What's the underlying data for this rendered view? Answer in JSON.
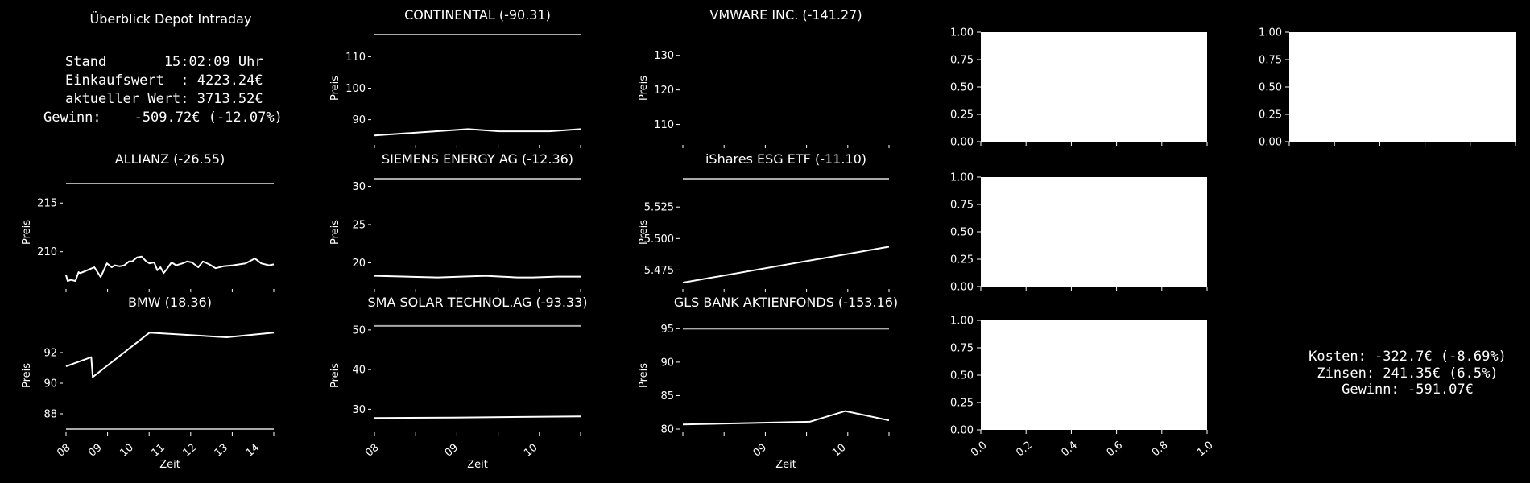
{
  "header": {
    "title": "Überblick Depot Intraday",
    "stand_line": "Stand       15:02:09 Uhr",
    "einkauf_line": "Einkaufswert  : 4223.24€",
    "aktuell_line": "aktueller Wert: 3713.52€",
    "gewinn_line": "Gewinn:    -509.72€ (-12.07%)"
  },
  "footer_summary": {
    "kosten_line": "Kosten: -322.7€ (-8.69%)",
    "zinsen_line": "Zinsen: 241.35€ (6.5%)",
    "gewinn_line": "Gewinn: -591.07€"
  },
  "colors": {
    "background": "#000000",
    "line": "#ffffff",
    "reference_line": "#aaaaaa",
    "empty_axes": "#ffffff"
  },
  "chart_data": [
    {
      "type": "line",
      "title": "CONTINENTAL (-90.31)",
      "ylabel": "Preis",
      "xlabel": "",
      "ylim": [
        83,
        117
      ],
      "yticks": [
        90,
        100,
        110
      ],
      "reference_line": 117,
      "xlim": [
        8.0,
        11.3
      ],
      "xticks": [],
      "x": [
        8.0,
        9.5,
        10.0,
        10.8,
        11.3
      ],
      "y": [
        85,
        87,
        86.3,
        86.3,
        87
      ]
    },
    {
      "type": "line",
      "title": "VMWARE INC. (-141.27)",
      "ylabel": "Preis",
      "xlabel": "",
      "ylim": [
        105,
        136
      ],
      "yticks": [
        110,
        120,
        130
      ],
      "reference_line": null,
      "xlim": [
        8.0,
        10.7
      ],
      "xticks": [],
      "x": [],
      "y": []
    },
    {
      "type": "line",
      "title": "ALLIANZ (-26.55)",
      "ylabel": "Preis",
      "xlabel": "",
      "ylim": [
        206.5,
        217.5
      ],
      "yticks": [
        210,
        215
      ],
      "reference_line": 217,
      "xlim": [
        8.0,
        14.6
      ],
      "xticks": [],
      "x": [
        8.0,
        8.05,
        8.15,
        8.3,
        8.4,
        8.45,
        8.6,
        8.75,
        8.9,
        9.1,
        9.3,
        9.45,
        9.55,
        9.7,
        9.85,
        10.0,
        10.1,
        10.25,
        10.4,
        10.55,
        10.65,
        10.8,
        10.9,
        11.0,
        11.1,
        11.2,
        11.35,
        11.5,
        11.7,
        11.85,
        12.0,
        12.2,
        12.35,
        12.55,
        12.75,
        13.0,
        13.3,
        13.7,
        14.0,
        14.2,
        14.45,
        14.6
      ],
      "y": [
        207.6,
        207.0,
        207.1,
        207.0,
        207.9,
        207.8,
        208.0,
        208.2,
        208.4,
        207.4,
        208.8,
        208.4,
        208.6,
        208.5,
        208.6,
        209.0,
        209.0,
        209.4,
        209.5,
        209.0,
        208.8,
        208.9,
        208.1,
        208.4,
        207.8,
        208.2,
        208.9,
        208.6,
        208.8,
        209.0,
        208.9,
        208.4,
        209.0,
        208.7,
        208.3,
        208.5,
        208.6,
        208.8,
        209.3,
        208.8,
        208.6,
        208.7
      ]
    },
    {
      "type": "line",
      "title": "SIEMENS ENERGY AG (-12.36)",
      "ylabel": "Preis",
      "xlabel": "",
      "ylim": [
        17,
        31
      ],
      "yticks": [
        20,
        25,
        30
      ],
      "reference_line": 31,
      "xlim": [
        8.0,
        10.6
      ],
      "xticks": [],
      "x": [
        8.0,
        8.4,
        8.8,
        9.1,
        9.4,
        9.6,
        9.8,
        10.0,
        10.3,
        10.6
      ],
      "y": [
        18.3,
        18.2,
        18.1,
        18.2,
        18.3,
        18.2,
        18.1,
        18.1,
        18.2,
        18.2
      ]
    },
    {
      "type": "line",
      "title": "iShares ESG ETF (-11.10)",
      "ylabel": "Preis",
      "xlabel": "",
      "ylim": [
        5.4625,
        5.5475
      ],
      "yticks": [
        5.475,
        5.5,
        5.525
      ],
      "reference_line": 5.5475,
      "xlim": [
        8.0,
        10.6
      ],
      "xticks": [],
      "x": [
        8.0,
        10.6
      ],
      "y": [
        5.465,
        5.4935
      ]
    },
    {
      "type": "line",
      "title": "BMW (18.36)",
      "ylabel": "Preis",
      "xlabel": "Zeit",
      "ylim": [
        87,
        94
      ],
      "yticks": [
        88,
        90,
        92
      ],
      "reference_line": 87,
      "xlim": [
        8.0,
        14.6
      ],
      "xticks": [
        "08",
        "09",
        "10",
        "11",
        "12",
        "13",
        "14"
      ],
      "x": [
        8.0,
        8.8,
        8.85,
        10.65,
        13.1,
        14.6
      ],
      "y": [
        91.1,
        91.7,
        90.4,
        93.3,
        93.0,
        93.3
      ]
    },
    {
      "type": "line",
      "title": "SMA SOLAR TECHNOL.AG (-93.33)",
      "ylabel": "Preis",
      "xlabel": "Zeit",
      "ylim": [
        25,
        52
      ],
      "yticks": [
        30,
        40,
        50
      ],
      "reference_line": 51,
      "xlim": [
        8.0,
        10.6
      ],
      "xticks": [
        "08",
        "09",
        "10"
      ],
      "x": [
        8.0,
        9.0,
        9.5,
        10.6
      ],
      "y": [
        27.8,
        27.9,
        28.0,
        28.2
      ]
    },
    {
      "type": "line",
      "title": "GLS BANK AKTIENFONDS (-153.16)",
      "ylabel": "Preis",
      "xlabel": "Zeit",
      "ylim": [
        80,
        96
      ],
      "yticks": [
        80,
        85,
        90,
        95
      ],
      "reference_line": 95,
      "xlim": [
        8.0,
        10.6
      ],
      "xticks": [
        "09",
        "10"
      ],
      "x": [
        8.0,
        9.6,
        10.05,
        10.6
      ],
      "y": [
        80.7,
        81.1,
        82.7,
        81.3
      ]
    },
    {
      "type": "empty",
      "title": "",
      "ylim": [
        0,
        1
      ],
      "yticks": [
        "0.00",
        "0.25",
        "0.50",
        "0.75",
        "1.00"
      ],
      "xticks": []
    },
    {
      "type": "empty",
      "title": "",
      "ylim": [
        0,
        1
      ],
      "yticks": [
        "0.00",
        "0.25",
        "0.50",
        "0.75",
        "1.00"
      ],
      "xticks": []
    },
    {
      "type": "empty",
      "title": "",
      "ylim": [
        0,
        1
      ],
      "yticks": [
        "0.00",
        "0.25",
        "0.50",
        "0.75",
        "1.00"
      ],
      "xticks": []
    },
    {
      "type": "empty",
      "title": "",
      "ylim": [
        0,
        1
      ],
      "yticks": [
        "0.00",
        "0.25",
        "0.50",
        "0.75",
        "1.00"
      ],
      "xticks": [
        "0.0",
        "0.2",
        "0.4",
        "0.6",
        "0.8",
        "1.0"
      ]
    }
  ]
}
